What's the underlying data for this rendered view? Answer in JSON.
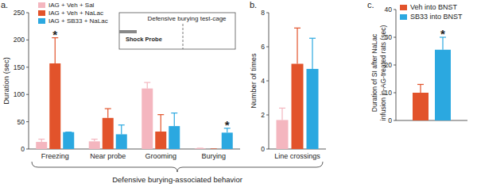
{
  "chart_data": [
    {
      "type": "bar",
      "panel": "a.",
      "ylabel": "Duration (sec)",
      "xlabel": "Defensive burying-associated behavior",
      "categories": [
        "Freezing",
        "Near probe",
        "Grooming",
        "Burying"
      ],
      "series": [
        {
          "name": "IAG + Veh + Sal",
          "color": "#f4b6bf",
          "values": [
            13,
            14,
            111,
            1
          ],
          "errors": [
            5,
            4,
            11,
            0.5
          ]
        },
        {
          "name": "IAG + Veh + NaLac",
          "color": "#e2532b",
          "values": [
            157,
            57,
            32,
            0
          ],
          "errors": [
            47,
            17,
            31,
            0
          ]
        },
        {
          "name": "IAG + SB33 + NaLac",
          "color": "#2ba8e0",
          "values": [
            31,
            27,
            42,
            30
          ],
          "errors": [
            0,
            17,
            24,
            8
          ]
        }
      ],
      "ylim": [
        0,
        250
      ],
      "yticks": [
        0,
        50,
        100,
        150,
        200,
        250
      ],
      "grid": false,
      "legend": "top-left",
      "inset": {
        "title": "Defensive burying test-cage",
        "label": "Shock Probe"
      },
      "annotations": [
        {
          "text": "*",
          "series": 1,
          "index": 0
        },
        {
          "text": "*",
          "series": 2,
          "index": 3
        }
      ]
    },
    {
      "type": "bar",
      "panel": "b.",
      "ylabel": "Number of times",
      "categories": [
        "Line crossings"
      ],
      "series": [
        {
          "color": "#f4b6bf",
          "values": [
            1.7
          ],
          "errors": [
            0.7
          ]
        },
        {
          "color": "#e2532b",
          "values": [
            5.0
          ],
          "errors": [
            2.1
          ]
        },
        {
          "color": "#2ba8e0",
          "values": [
            4.7
          ],
          "errors": [
            1.8
          ]
        }
      ],
      "ylim": [
        0,
        8
      ],
      "yticks": [
        0,
        2,
        4,
        6,
        8
      ],
      "grid": false
    },
    {
      "type": "bar",
      "panel": "c.",
      "ylabel": "Duration of SI after  NaLac\ninfusion in-AG-treated rats (sec)",
      "categories": [
        null
      ],
      "series": [
        {
          "name": "Veh into BNST",
          "color": "#e2532b",
          "values": [
            10
          ],
          "errors": [
            3
          ]
        },
        {
          "name": "SB33 into BNST",
          "color": "#2ba8e0",
          "values": [
            25.5
          ],
          "errors": [
            4.5
          ]
        }
      ],
      "ylim": [
        0,
        40
      ],
      "yticks": [
        0,
        10,
        20,
        30,
        40
      ],
      "grid": false,
      "legend": "top-left",
      "annotations": [
        {
          "text": "*",
          "series": 1,
          "index": 0
        }
      ]
    }
  ]
}
